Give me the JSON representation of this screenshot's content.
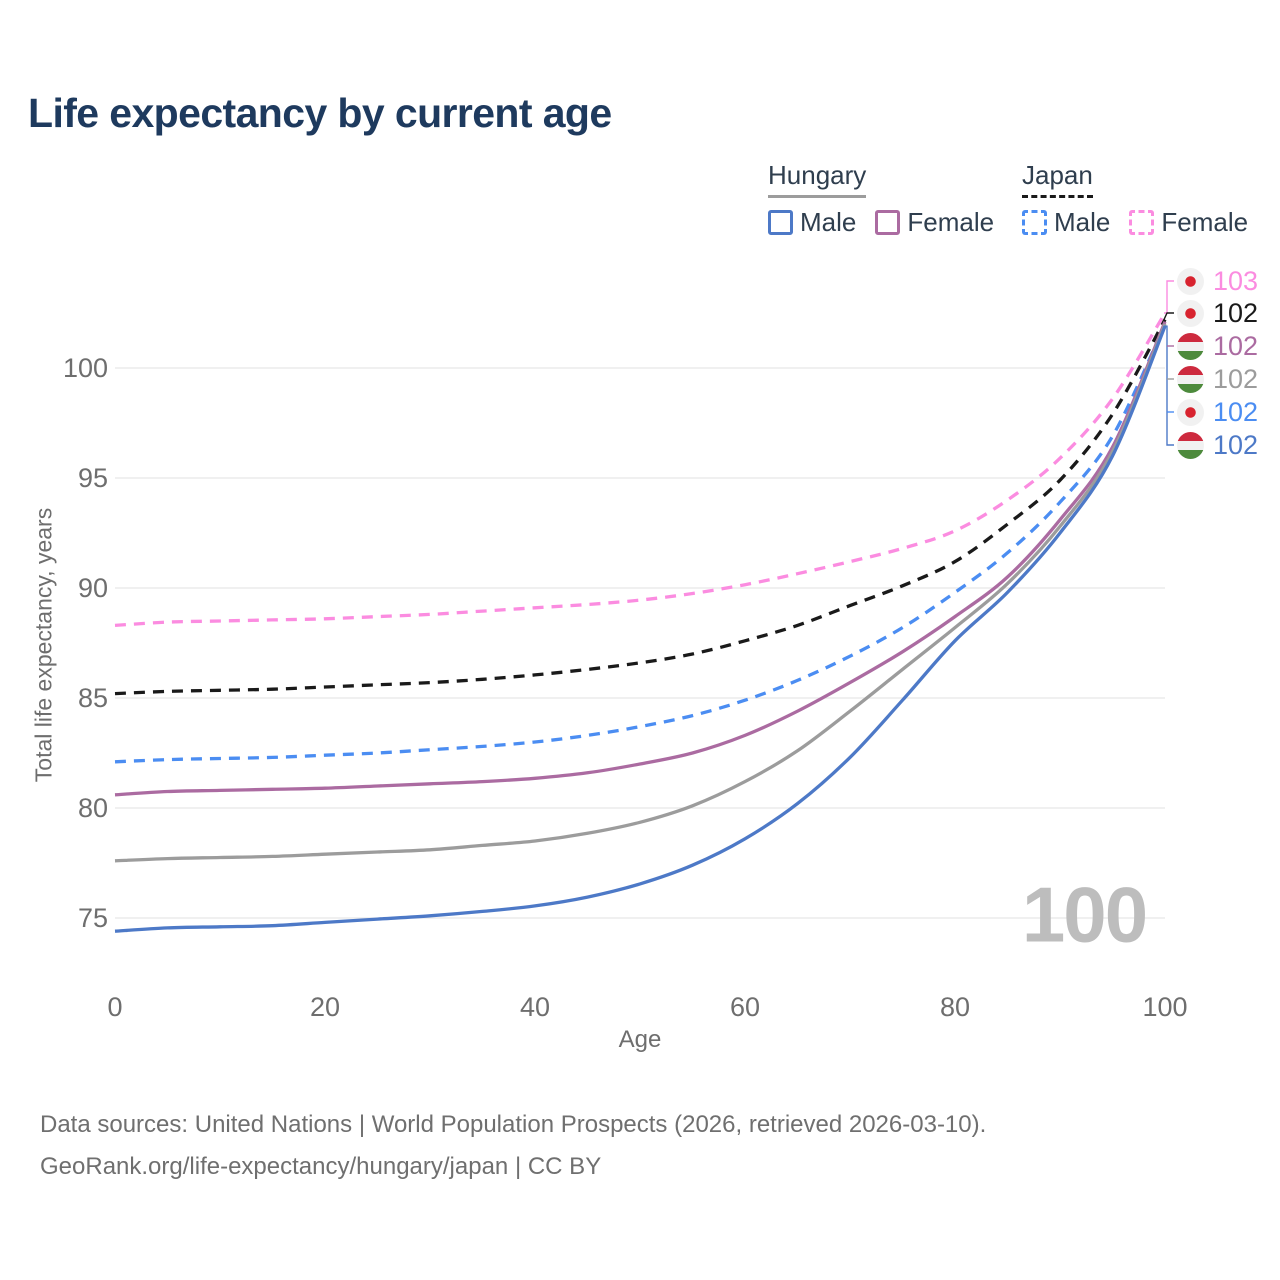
{
  "title": "Life expectancy by current age",
  "watermark": "100",
  "colors": {
    "title": "#1e3a5e",
    "legend_text": "#2f3e4e",
    "axis_text": "#6e6e6e",
    "grid": "#e8e8e8",
    "watermark": "#bdbdbd",
    "footer_text": "#6f6f6f",
    "flag_red_japan": "#d8232f",
    "flag_red_hungary": "#cd2a3e",
    "flag_white": "#f1f1f1",
    "flag_green_hungary": "#4d8a3c"
  },
  "legend": {
    "groups": [
      {
        "name": "Hungary",
        "line_style": "solid",
        "underline_series": "hungary_total",
        "items": [
          {
            "label": "Male",
            "series": "hungary_male"
          },
          {
            "label": "Female",
            "series": "hungary_female"
          }
        ]
      },
      {
        "name": "Japan",
        "line_style": "dashed",
        "underline_series": "japan_total",
        "items": [
          {
            "label": "Male",
            "series": "japan_male"
          },
          {
            "label": "Female",
            "series": "japan_female"
          }
        ]
      }
    ]
  },
  "chart_data": {
    "type": "line",
    "title": "Life expectancy by current age",
    "xlabel": "Age",
    "ylabel": "Total life expectancy, years",
    "xlim": [
      0,
      100
    ],
    "ylim": [
      73.5,
      104
    ],
    "x_ticks": [
      0,
      20,
      40,
      60,
      80,
      100
    ],
    "y_ticks": [
      75,
      80,
      85,
      90,
      95,
      100
    ],
    "grid": "horizontal",
    "legend_position": "top-right",
    "x": [
      0,
      5,
      10,
      15,
      20,
      25,
      30,
      35,
      40,
      45,
      50,
      55,
      60,
      65,
      70,
      75,
      80,
      85,
      90,
      95,
      100
    ],
    "series": [
      {
        "key": "japan_female",
        "name": "Japan Female",
        "country": "Japan",
        "category": "Female",
        "color": "#fb8ce0",
        "dashed": true,
        "values": [
          88.3,
          88.45,
          88.5,
          88.55,
          88.6,
          88.7,
          88.8,
          88.95,
          89.1,
          89.25,
          89.45,
          89.75,
          90.15,
          90.65,
          91.2,
          91.8,
          92.6,
          94.0,
          95.9,
          98.6,
          102.5
        ]
      },
      {
        "key": "japan_total",
        "name": "Japan",
        "country": "Japan",
        "category": "Both sexes",
        "color": "#1a1a1a",
        "dashed": true,
        "values": [
          85.2,
          85.3,
          85.35,
          85.4,
          85.5,
          85.6,
          85.7,
          85.85,
          86.05,
          86.3,
          86.6,
          87.0,
          87.6,
          88.3,
          89.2,
          90.1,
          91.2,
          92.9,
          94.9,
          97.9,
          102.2
        ]
      },
      {
        "key": "japan_male",
        "name": "Japan Male",
        "country": "Japan",
        "category": "Male",
        "color": "#4b8df2",
        "dashed": true,
        "values": [
          82.1,
          82.2,
          82.25,
          82.3,
          82.4,
          82.5,
          82.65,
          82.8,
          83.0,
          83.3,
          83.7,
          84.2,
          84.9,
          85.8,
          86.9,
          88.2,
          89.8,
          91.6,
          93.9,
          96.9,
          102.0
        ]
      },
      {
        "key": "hungary_female",
        "name": "Hungary Female",
        "country": "Hungary",
        "category": "Female",
        "color": "#ab6ba1",
        "dashed": false,
        "values": [
          80.6,
          80.75,
          80.8,
          80.85,
          80.9,
          81.0,
          81.1,
          81.2,
          81.35,
          81.6,
          82.0,
          82.5,
          83.3,
          84.4,
          85.7,
          87.1,
          88.7,
          90.5,
          93.1,
          96.4,
          102.1
        ]
      },
      {
        "key": "hungary_total",
        "name": "Hungary",
        "country": "Hungary",
        "category": "Both sexes",
        "color": "#9c9c9c",
        "dashed": false,
        "values": [
          77.6,
          77.7,
          77.75,
          77.8,
          77.9,
          78.0,
          78.1,
          78.3,
          78.5,
          78.85,
          79.35,
          80.1,
          81.2,
          82.6,
          84.4,
          86.3,
          88.2,
          90.2,
          92.8,
          96.2,
          102.0
        ]
      },
      {
        "key": "hungary_male",
        "name": "Hungary Male",
        "country": "Hungary",
        "category": "Male",
        "color": "#4d79c7",
        "dashed": false,
        "values": [
          74.4,
          74.55,
          74.6,
          74.65,
          74.8,
          74.95,
          75.1,
          75.3,
          75.55,
          75.95,
          76.55,
          77.4,
          78.6,
          80.2,
          82.3,
          84.9,
          87.6,
          89.8,
          92.5,
          96.0,
          101.9
        ]
      }
    ],
    "end_labels": [
      {
        "value": "103",
        "series": "japan_female",
        "flag": "japan"
      },
      {
        "value": "102",
        "series": "japan_total",
        "flag": "japan"
      },
      {
        "value": "102",
        "series": "hungary_female",
        "flag": "hungary"
      },
      {
        "value": "102",
        "series": "hungary_total",
        "flag": "hungary"
      },
      {
        "value": "102",
        "series": "japan_male",
        "flag": "japan"
      },
      {
        "value": "102",
        "series": "hungary_male",
        "flag": "hungary"
      }
    ]
  },
  "footer": {
    "line1": "Data sources: United Nations | World Population Prospects (2026, retrieved 2026-03-10).",
    "line2": "GeoRank.org/life-expectancy/hungary/japan | CC BY"
  }
}
